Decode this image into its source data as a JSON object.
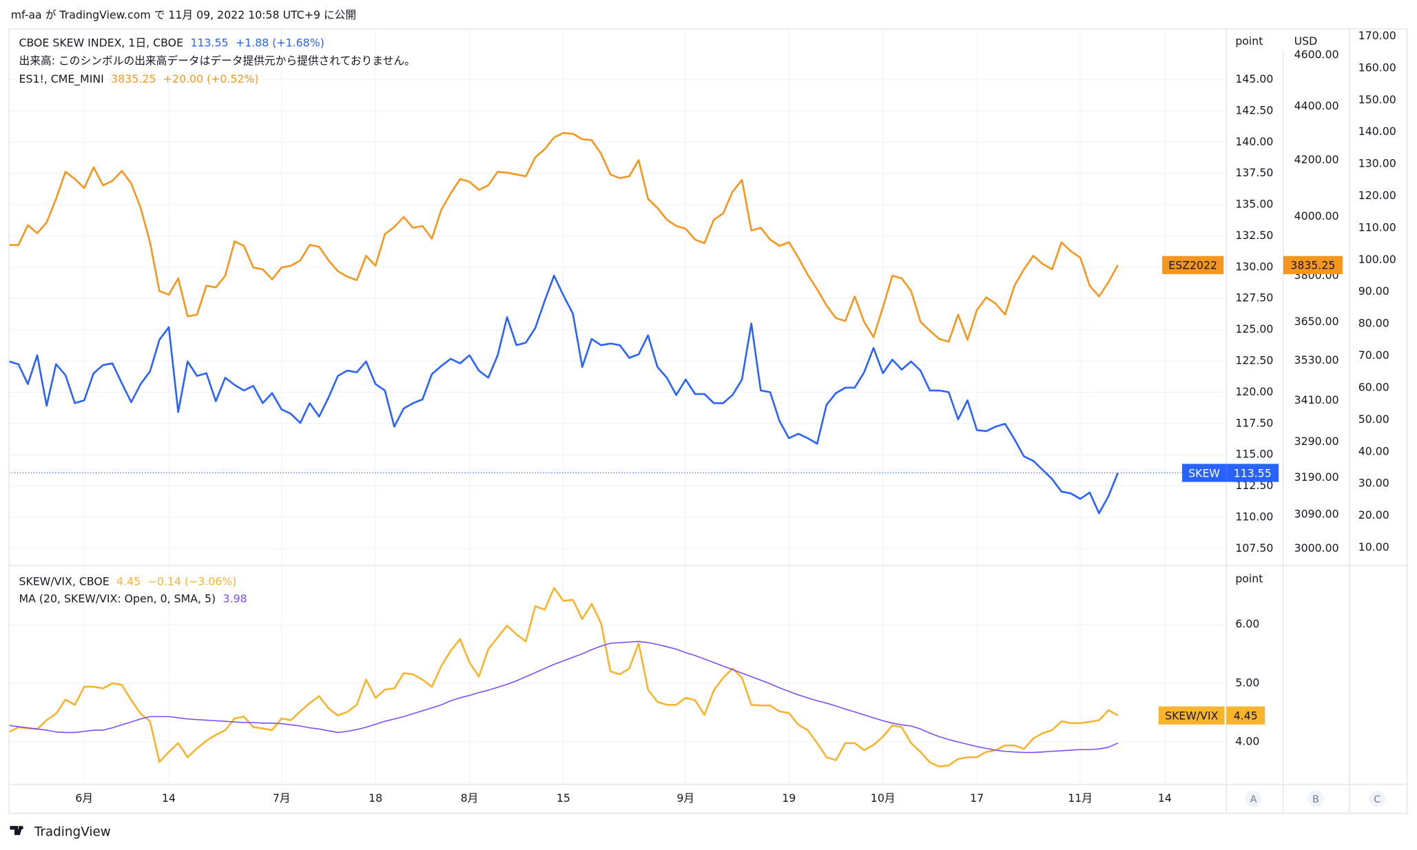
{
  "header": {
    "text": "mf-aa が TradingView.com で 11月 09, 2022 10:58 UTC+9 に公開"
  },
  "chart_data": [
    {
      "type": "line",
      "categories": [
        null,
        null,
        null,
        null,
        null,
        null,
        null,
        null,
        "6月",
        null,
        null,
        null,
        null,
        null,
        null,
        null,
        null,
        "14",
        null,
        null,
        null,
        null,
        null,
        null,
        null,
        null,
        null,
        null,
        null,
        "7月",
        null,
        null,
        null,
        null,
        null,
        null,
        null,
        null,
        null,
        "18",
        null,
        null,
        null,
        null,
        null,
        null,
        null,
        null,
        null,
        "8月",
        null,
        null,
        null,
        null,
        null,
        null,
        null,
        null,
        null,
        "15",
        null,
        null,
        null,
        null,
        null,
        null,
        null,
        null,
        null,
        null,
        null,
        null,
        "9月",
        null,
        null,
        null,
        null,
        null,
        null,
        null,
        null,
        null,
        null,
        "19",
        null,
        null,
        null,
        null,
        null,
        null,
        null,
        null,
        null,
        "10月",
        null,
        null,
        null,
        null,
        null,
        null,
        null,
        null,
        null,
        "17",
        null,
        null,
        null,
        null,
        null,
        null,
        null,
        null,
        null,
        null,
        "11月",
        null,
        null,
        null,
        null,
        null,
        null,
        null,
        null,
        "14"
      ],
      "notes": [
        "出来高: このシンボルの出来高データはデータ提供元から提供されておりません。"
      ],
      "series": [
        {
          "name": "CBOE SKEW INDEX, 1日, CBOE",
          "tag": "SKEW",
          "change": "+1.88 (+1.68%)",
          "color": "#2962ff",
          "values": [
            122.46,
            122.24,
            120.65,
            122.96,
            118.92,
            122.24,
            121.37,
            119.13,
            119.35,
            121.52,
            122.17,
            122.31,
            120.72,
            119.21,
            120.65,
            121.66,
            124.19,
            125.2,
            118.41,
            122.46,
            121.3,
            121.52,
            119.28,
            121.16,
            120.58,
            120.14,
            120.51,
            119.13,
            119.93,
            118.63,
            118.27,
            117.54,
            119.13,
            118.05,
            119.57,
            121.3,
            121.73,
            121.59,
            122.46,
            120.65,
            120.14,
            117.25,
            118.7,
            119.13,
            119.42,
            121.45,
            122.1,
            122.67,
            122.31,
            122.96,
            121.73,
            121.16,
            122.96,
            126.0,
            123.76,
            123.97,
            125.13,
            127.3,
            129.32,
            127.73,
            126.29,
            122.02,
            124.26,
            123.76,
            123.9,
            123.76,
            122.75,
            123.03,
            124.55,
            122.02,
            121.16,
            119.78,
            121.01,
            119.86,
            119.86,
            119.13,
            119.13,
            119.78,
            121.01,
            125.49,
            120.14,
            120.0,
            117.69,
            116.32,
            116.68,
            116.32,
            115.88,
            118.99,
            119.93,
            120.36,
            120.36,
            121.59,
            123.54,
            121.52,
            122.6,
            121.81,
            122.46,
            121.73,
            120.14,
            120.14,
            120.0,
            117.83,
            119.35,
            116.97,
            116.89,
            117.25,
            117.47,
            116.24,
            114.87,
            114.51,
            113.79,
            113.06,
            112.05,
            111.91,
            111.47,
            111.98,
            110.32,
            111.69,
            113.55,
            null,
            null,
            null,
            null,
            null
          ]
        },
        {
          "name": "ES1!, CME_MINI",
          "tag": "ESZ2022",
          "change": "+20.00 (+0.52%)",
          "color": "#f7961d",
          "axis": "y2",
          "values": [
            3902.5,
            3902.5,
            3970.3,
            3942.4,
            3979.6,
            4061.5,
            4158.0,
            4132.1,
            4099.8,
            4174.4,
            4109.5,
            4125.6,
            4161.3,
            4115.9,
            4029.8,
            3911.6,
            3749.7,
            3738.0,
            3791.0,
            3668.4,
            3674.1,
            3767.3,
            3761.5,
            3799.9,
            3914.7,
            3899.4,
            3826.8,
            3820.8,
            3788.1,
            3826.8,
            3832.8,
            3850.8,
            3902.5,
            3896.4,
            3850.8,
            3814.8,
            3797.0,
            3785.1,
            3866.0,
            3832.8,
            3939.3,
            3964.1,
            3998.4,
            3961.0,
            3967.2,
            3923.9,
            4023.5,
            4080.6,
            4132.1,
            4122.4,
            4093.4,
            4109.5,
            4158.0,
            4154.8,
            4148.3,
            4141.8,
            4210.4,
            4240.2,
            4283.6,
            4300.4,
            4297.0,
            4276.9,
            4273.6,
            4223.6,
            4148.3,
            4135.3,
            4141.8,
            4200.5,
            4061.5,
            4029.8,
            3989.0,
            3967.2,
            3957.9,
            3920.8,
            3908.6,
            3989.0,
            4010.9,
            4087.0,
            4128.8,
            3951.7,
            3961.0,
            3920.8,
            3899.4,
            3911.6,
            3859.9,
            3802.9,
            3755.6,
            3703.0,
            3662.7,
            3654.1,
            3732.1,
            3651.2,
            3602.9,
            3697.2,
            3799.9,
            3791.0,
            3749.7,
            3651.2,
            3622.7,
            3597.3,
            3588.8,
            3674.1,
            3594.5,
            3688.6,
            3729.2,
            3708.8,
            3674.1,
            3767.3,
            3820.8,
            3866.0,
            3838.8,
            3820.8,
            3911.6,
            3881.1,
            3859.9,
            3767.3,
            3732.1,
            3779.2,
            3835.25,
            null,
            null,
            null,
            null,
            null
          ]
        }
      ],
      "y_label": "point",
      "y2_label": "USD",
      "ylim": [
        106.2,
        149.05
      ],
      "yticks": [
        {
          "value": 107.5,
          "label": "107.50"
        },
        {
          "value": 110,
          "label": "110.00"
        },
        {
          "value": 112.5,
          "label": "112.50"
        },
        {
          "value": 115,
          "label": "115.00"
        },
        {
          "value": 117.5,
          "label": "117.50"
        },
        {
          "value": 120,
          "label": "120.00"
        },
        {
          "value": 122.5,
          "label": "122.50"
        },
        {
          "value": 125,
          "label": "125.00"
        },
        {
          "value": 127.5,
          "label": "127.50"
        },
        {
          "value": 130,
          "label": "130.00"
        },
        {
          "value": 132.5,
          "label": "132.50"
        },
        {
          "value": 135,
          "label": "135.00"
        },
        {
          "value": 137.5,
          "label": "137.50"
        },
        {
          "value": 140,
          "label": "140.00"
        },
        {
          "value": 142.5,
          "label": "142.50"
        },
        {
          "value": 145,
          "label": "145.00"
        }
      ],
      "y2lim": [
        2958,
        4706
      ],
      "y2log": true,
      "y2ticks": [
        {
          "value": 3000,
          "label": "3000.00"
        },
        {
          "value": 3090,
          "label": "3090.00"
        },
        {
          "value": 3190,
          "label": "3190.00"
        },
        {
          "value": 3290,
          "label": "3290.00"
        },
        {
          "value": 3410,
          "label": "3410.00"
        },
        {
          "value": 3530,
          "label": "3530.00"
        },
        {
          "value": 3650,
          "label": "3650.00"
        },
        {
          "value": 3800,
          "label": "3800.00"
        },
        {
          "value": 4000,
          "label": "4000.00"
        },
        {
          "value": 4200,
          "label": "4200.00"
        },
        {
          "value": 4400,
          "label": "4400.00"
        },
        {
          "value": 4600,
          "label": "4600.00"
        }
      ],
      "y3lim": [
        4.63,
        172.26
      ],
      "y3ticks": [
        {
          "value": 10,
          "label": "10.00"
        },
        {
          "value": 20,
          "label": "20.00"
        },
        {
          "value": 30,
          "label": "30.00"
        },
        {
          "value": 40,
          "label": "40.00"
        },
        {
          "value": 50,
          "label": "50.00"
        },
        {
          "value": 60,
          "label": "60.00"
        },
        {
          "value": 70,
          "label": "70.00"
        },
        {
          "value": 80,
          "label": "80.00"
        },
        {
          "value": 90,
          "label": "90.00"
        },
        {
          "value": 100,
          "label": "100.00"
        },
        {
          "value": 110,
          "label": "110.00"
        },
        {
          "value": 120,
          "label": "120.00"
        },
        {
          "value": 130,
          "label": "130.00"
        },
        {
          "value": 140,
          "label": "140.00"
        },
        {
          "value": 150,
          "label": "150.00"
        },
        {
          "value": 160,
          "label": "160.00"
        },
        {
          "value": 170,
          "label": "170.00"
        }
      ],
      "grid": true
    },
    {
      "type": "line",
      "series": [
        {
          "name": "SKEW/VIX, CBOE",
          "tag": "SKEW/VIX",
          "change": "−0.14 (−3.06%)",
          "color": "#f9b42d",
          "values": [
            4.17,
            4.25,
            4.23,
            4.22,
            4.37,
            4.48,
            4.72,
            4.63,
            4.94,
            4.94,
            4.91,
            5.0,
            4.97,
            4.71,
            4.48,
            4.35,
            3.66,
            3.83,
            3.98,
            3.74,
            3.89,
            4.02,
            4.12,
            4.2,
            4.4,
            4.43,
            4.25,
            4.23,
            4.2,
            4.4,
            4.37,
            4.52,
            4.66,
            4.78,
            4.57,
            4.45,
            4.51,
            4.63,
            5.06,
            4.75,
            4.89,
            4.91,
            5.17,
            5.15,
            5.06,
            4.94,
            5.29,
            5.55,
            5.75,
            5.35,
            5.11,
            5.58,
            5.78,
            5.98,
            5.83,
            5.71,
            6.31,
            6.25,
            6.62,
            6.4,
            6.42,
            6.09,
            6.35,
            6.02,
            5.2,
            5.15,
            5.25,
            5.68,
            4.89,
            4.68,
            4.63,
            4.63,
            4.75,
            4.71,
            4.46,
            4.88,
            5.09,
            5.25,
            5.09,
            4.63,
            4.62,
            4.62,
            4.52,
            4.49,
            4.29,
            4.2,
            3.98,
            3.74,
            3.69,
            3.98,
            3.98,
            3.86,
            3.95,
            4.09,
            4.28,
            4.25,
            3.98,
            3.83,
            3.65,
            3.58,
            3.6,
            3.71,
            3.74,
            3.74,
            3.83,
            3.86,
            3.94,
            3.94,
            3.88,
            4.06,
            4.15,
            4.2,
            4.35,
            4.32,
            4.32,
            4.34,
            4.37,
            4.54,
            4.45,
            null,
            null,
            null,
            null,
            null
          ]
        },
        {
          "name": "MA (20, SKEW/VIX: Open, 0, SMA, 5)",
          "color": "#7c4dff",
          "values": [
            4.28,
            4.26,
            4.24,
            4.22,
            4.2,
            4.17,
            4.16,
            4.16,
            4.18,
            4.2,
            4.2,
            4.24,
            4.29,
            4.34,
            4.39,
            4.43,
            4.43,
            4.43,
            4.41,
            4.39,
            4.38,
            4.37,
            4.36,
            4.35,
            4.34,
            4.33,
            4.33,
            4.32,
            4.32,
            4.31,
            4.29,
            4.27,
            4.24,
            4.22,
            4.19,
            4.16,
            4.18,
            4.21,
            4.25,
            4.3,
            4.35,
            4.39,
            4.43,
            4.48,
            4.53,
            4.58,
            4.63,
            4.7,
            4.75,
            4.79,
            4.84,
            4.88,
            4.93,
            4.98,
            5.04,
            5.11,
            5.18,
            5.25,
            5.32,
            5.38,
            5.44,
            5.5,
            5.57,
            5.63,
            5.68,
            5.69,
            5.7,
            5.71,
            5.69,
            5.66,
            5.62,
            5.58,
            5.52,
            5.47,
            5.41,
            5.35,
            5.29,
            5.23,
            5.17,
            5.11,
            5.05,
            4.99,
            4.92,
            4.86,
            4.8,
            4.75,
            4.7,
            4.66,
            4.61,
            4.56,
            4.51,
            4.46,
            4.41,
            4.36,
            4.32,
            4.29,
            4.27,
            4.22,
            4.15,
            4.09,
            4.04,
            4.0,
            3.96,
            3.92,
            3.89,
            3.86,
            3.84,
            3.83,
            3.82,
            3.82,
            3.83,
            3.84,
            3.85,
            3.86,
            3.87,
            3.87,
            3.88,
            3.91,
            3.98,
            null,
            null,
            null,
            null,
            null
          ]
        }
      ],
      "y_label": "point",
      "ylim": [
        3.277,
        6.969
      ],
      "yticks": [
        {
          "value": 4,
          "label": "4.00"
        },
        {
          "value": 5,
          "label": "5.00"
        },
        {
          "value": 6,
          "label": "6.00"
        }
      ],
      "grid": true
    }
  ],
  "axis_buttons": [
    "A",
    "B",
    "C"
  ],
  "footer": {
    "logo": "TradingView"
  }
}
